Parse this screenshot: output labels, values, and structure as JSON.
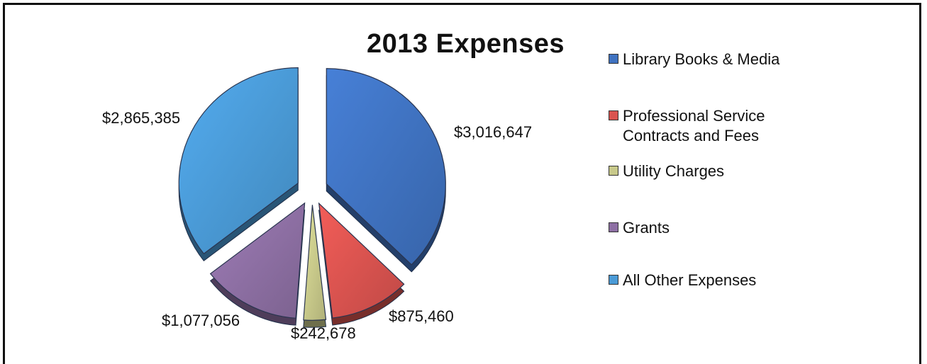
{
  "chart_data": {
    "type": "pie",
    "title": "2013 Expenses",
    "slices": [
      {
        "name": "Library Books & Media",
        "value": 3016647,
        "label": "$3,016,647",
        "color": "#3f72c0"
      },
      {
        "name": "Professional Service Contracts and Fees",
        "value": 875460,
        "label": "$875,460",
        "color": "#d9534f"
      },
      {
        "name": "Utility Charges",
        "value": 242678,
        "label": "$242,678",
        "color": "#c8c98a"
      },
      {
        "name": "Grants",
        "value": 1077056,
        "label": "$1,077,056",
        "color": "#8d6fa3"
      },
      {
        "name": "All Other Expenses",
        "value": 2865385,
        "label": "$2,865,385",
        "color": "#4a9ad6"
      }
    ],
    "legend": {
      "position": "right",
      "items": [
        {
          "line1": "Library Books & Media",
          "line2": ""
        },
        {
          "line1": "Professional Service",
          "line2": "Contracts and Fees"
        },
        {
          "line1": "Utility Charges",
          "line2": ""
        },
        {
          "line1": "Grants",
          "line2": ""
        },
        {
          "line1": "All Other Expenses",
          "line2": ""
        }
      ]
    },
    "exploded": true,
    "style": "3d"
  }
}
